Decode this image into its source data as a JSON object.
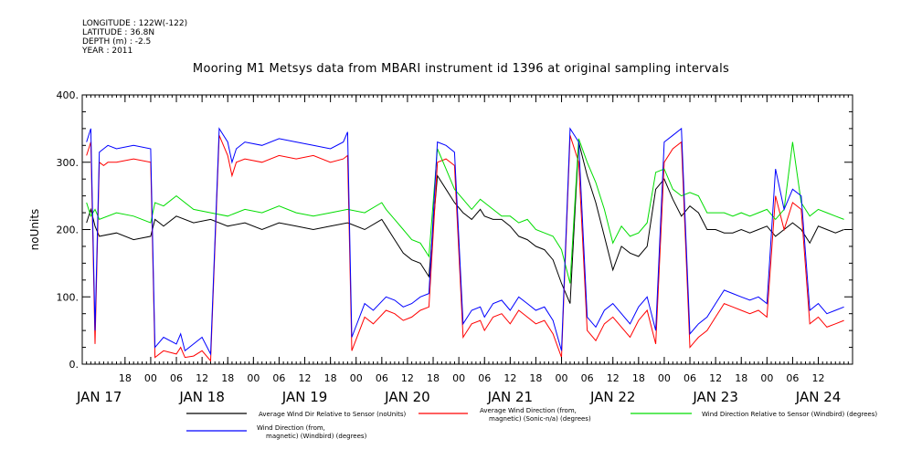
{
  "header": {
    "meta_lines": [
      "LONGITUDE : 122W(-122)",
      "LATITUDE : 36.8N",
      "DEPTH (m) : -2.5",
      "YEAR : 2011"
    ],
    "title": "Mooring M1 Metsys data from MBARI instrument id 1396 at original sampling intervals"
  },
  "chart_data": {
    "type": "line",
    "title": "Mooring M1 Metsys data from MBARI instrument id 1396 at original sampling intervals",
    "ylabel": "noUnits",
    "xlabel": "",
    "ylim": [
      0,
      400
    ],
    "y_ticks": [
      0,
      100,
      200,
      300,
      400
    ],
    "y_tick_labels": [
      "0.",
      "100.",
      "200.",
      "300.",
      "400."
    ],
    "x_range_hours": [
      -8,
      172
    ],
    "x_hour_ticks": [
      {
        "h": 2,
        "label": "18"
      },
      {
        "h": 8,
        "label": "00"
      },
      {
        "h": 14,
        "label": "06"
      },
      {
        "h": 20,
        "label": "12"
      },
      {
        "h": 26,
        "label": "18"
      },
      {
        "h": 32,
        "label": "00"
      },
      {
        "h": 38,
        "label": "06"
      },
      {
        "h": 44,
        "label": "12"
      },
      {
        "h": 50,
        "label": "18"
      },
      {
        "h": 56,
        "label": "00"
      },
      {
        "h": 62,
        "label": "06"
      },
      {
        "h": 68,
        "label": "12"
      },
      {
        "h": 74,
        "label": "18"
      },
      {
        "h": 80,
        "label": "00"
      },
      {
        "h": 86,
        "label": "06"
      },
      {
        "h": 92,
        "label": "12"
      },
      {
        "h": 98,
        "label": "18"
      },
      {
        "h": 104,
        "label": "00"
      },
      {
        "h": 110,
        "label": "06"
      },
      {
        "h": 116,
        "label": "12"
      },
      {
        "h": 122,
        "label": "18"
      },
      {
        "h": 128,
        "label": "00"
      },
      {
        "h": 134,
        "label": "06"
      },
      {
        "h": 140,
        "label": "12"
      },
      {
        "h": 146,
        "label": "18"
      },
      {
        "h": 152,
        "label": "00"
      },
      {
        "h": 158,
        "label": "06"
      },
      {
        "h": 164,
        "label": "12"
      }
    ],
    "x_day_labels": [
      {
        "h": -4,
        "label": "JAN 17"
      },
      {
        "h": 20,
        "label": "JAN 18"
      },
      {
        "h": 44,
        "label": "JAN 19"
      },
      {
        "h": 68,
        "label": "JAN 20"
      },
      {
        "h": 92,
        "label": "JAN 21"
      },
      {
        "h": 116,
        "label": "JAN 22"
      },
      {
        "h": 140,
        "label": "JAN 23"
      },
      {
        "h": 164,
        "label": "JAN 24"
      }
    ],
    "grid": false,
    "legend_position": "bottom",
    "series": [
      {
        "name": "Average Wind Dir Relative to Sensor (noUnits)",
        "color": "#000000",
        "x": [
          -7,
          -6,
          -5,
          -4,
          0,
          4,
          8,
          9,
          11,
          14,
          18,
          22,
          26,
          30,
          34,
          38,
          42,
          46,
          50,
          54,
          58,
          62,
          63,
          65,
          67,
          69,
          71,
          73,
          75,
          77,
          79,
          81,
          83,
          85,
          86,
          88,
          90,
          92,
          94,
          96,
          98,
          100,
          102,
          104,
          106,
          108,
          110,
          112,
          114,
          116,
          118,
          120,
          122,
          124,
          126,
          128,
          130,
          132,
          134,
          136,
          138,
          140,
          142,
          144,
          146,
          148,
          150,
          152,
          154,
          156,
          158,
          160,
          162,
          164,
          166,
          168,
          170
        ],
        "y": [
          210,
          230,
          205,
          190,
          195,
          185,
          190,
          215,
          205,
          220,
          210,
          215,
          205,
          210,
          200,
          210,
          205,
          200,
          205,
          210,
          200,
          215,
          205,
          185,
          165,
          155,
          150,
          130,
          280,
          260,
          240,
          225,
          215,
          230,
          220,
          215,
          215,
          205,
          190,
          185,
          175,
          170,
          155,
          120,
          90,
          330,
          280,
          240,
          190,
          140,
          175,
          165,
          160,
          175,
          260,
          275,
          245,
          220,
          235,
          225,
          200,
          200,
          195,
          195,
          200,
          195,
          200,
          205,
          190,
          200,
          210,
          200,
          180,
          205,
          200,
          195,
          200
        ]
      },
      {
        "name": "Average Wind Direction (from, magnetic) (Sonic-n/a) (degrees)",
        "color": "#ff0000",
        "x": [
          -7,
          -6,
          -5,
          -4,
          -3,
          -2,
          0,
          4,
          8,
          9,
          11,
          14,
          15,
          16,
          18,
          20,
          22,
          24,
          26,
          27,
          28,
          30,
          34,
          38,
          42,
          46,
          50,
          53,
          54,
          55,
          58,
          60,
          63,
          65,
          67,
          69,
          71,
          73,
          75,
          77,
          79,
          81,
          83,
          85,
          86,
          88,
          90,
          92,
          94,
          96,
          98,
          100,
          102,
          104,
          106,
          108,
          110,
          112,
          114,
          116,
          118,
          120,
          122,
          124,
          126,
          128,
          130,
          132,
          134,
          136,
          138,
          140,
          142,
          144,
          146,
          148,
          150,
          152,
          154,
          156,
          158,
          160,
          162,
          164,
          166,
          168,
          170
        ],
        "y": [
          310,
          330,
          30,
          300,
          295,
          300,
          300,
          305,
          300,
          10,
          20,
          15,
          25,
          10,
          12,
          20,
          5,
          340,
          310,
          280,
          300,
          305,
          300,
          310,
          305,
          310,
          300,
          305,
          310,
          20,
          70,
          60,
          80,
          75,
          65,
          70,
          80,
          85,
          300,
          305,
          295,
          40,
          60,
          65,
          50,
          70,
          75,
          60,
          80,
          70,
          60,
          65,
          45,
          10,
          340,
          300,
          50,
          35,
          60,
          70,
          55,
          40,
          65,
          80,
          30,
          300,
          320,
          330,
          25,
          40,
          50,
          70,
          90,
          85,
          80,
          75,
          80,
          70,
          250,
          200,
          240,
          230,
          60,
          70,
          55,
          60,
          65
        ]
      },
      {
        "name": "Wind Direction Relative to Sensor (Windbird) (degrees)",
        "color": "#00dd00",
        "x": [
          -7,
          -6,
          -5,
          -4,
          0,
          4,
          8,
          9,
          11,
          14,
          18,
          22,
          26,
          30,
          34,
          38,
          42,
          46,
          50,
          54,
          58,
          62,
          63,
          65,
          67,
          69,
          71,
          73,
          75,
          77,
          79,
          81,
          83,
          85,
          86,
          88,
          90,
          92,
          94,
          96,
          98,
          100,
          102,
          104,
          106,
          108,
          110,
          112,
          114,
          116,
          118,
          120,
          122,
          124,
          126,
          128,
          130,
          132,
          134,
          136,
          138,
          140,
          142,
          144,
          146,
          148,
          150,
          152,
          154,
          156,
          158,
          160,
          162,
          164,
          166,
          168,
          170
        ],
        "y": [
          240,
          220,
          230,
          215,
          225,
          220,
          210,
          240,
          235,
          250,
          230,
          225,
          220,
          230,
          225,
          235,
          225,
          220,
          225,
          230,
          225,
          240,
          230,
          215,
          200,
          185,
          180,
          160,
          320,
          290,
          260,
          245,
          230,
          245,
          240,
          230,
          220,
          220,
          210,
          215,
          200,
          195,
          190,
          170,
          120,
          335,
          300,
          270,
          230,
          180,
          205,
          190,
          195,
          210,
          285,
          290,
          260,
          250,
          255,
          250,
          225,
          225,
          225,
          220,
          225,
          220,
          225,
          230,
          215,
          230,
          330,
          240,
          220,
          230,
          225,
          220,
          215
        ]
      },
      {
        "name": "Wind Direction (from, magnetic) (Windbird) (degrees)",
        "color": "#0000ff",
        "x": [
          -7,
          -6,
          -5,
          -4,
          -3,
          -2,
          0,
          4,
          8,
          9,
          11,
          14,
          15,
          16,
          18,
          20,
          22,
          24,
          26,
          27,
          28,
          30,
          34,
          38,
          42,
          46,
          50,
          53,
          54,
          55,
          58,
          60,
          63,
          65,
          67,
          69,
          71,
          73,
          75,
          77,
          79,
          81,
          83,
          85,
          86,
          88,
          90,
          92,
          94,
          96,
          98,
          100,
          102,
          104,
          106,
          108,
          110,
          112,
          114,
          116,
          118,
          120,
          122,
          124,
          126,
          128,
          130,
          132,
          134,
          136,
          138,
          140,
          142,
          144,
          146,
          148,
          150,
          152,
          154,
          156,
          158,
          160,
          162,
          164,
          166,
          168,
          170
        ],
        "y": [
          330,
          350,
          50,
          315,
          320,
          325,
          320,
          325,
          320,
          25,
          40,
          30,
          45,
          20,
          30,
          40,
          15,
          350,
          330,
          300,
          320,
          330,
          325,
          335,
          330,
          325,
          320,
          330,
          345,
          40,
          90,
          80,
          100,
          95,
          85,
          90,
          100,
          105,
          330,
          325,
          315,
          60,
          80,
          85,
          70,
          90,
          95,
          80,
          100,
          90,
          80,
          85,
          65,
          20,
          350,
          330,
          70,
          55,
          80,
          90,
          75,
          60,
          85,
          100,
          50,
          330,
          340,
          350,
          45,
          60,
          70,
          90,
          110,
          105,
          100,
          95,
          100,
          90,
          290,
          230,
          260,
          250,
          80,
          90,
          75,
          80,
          85
        ]
      }
    ]
  }
}
